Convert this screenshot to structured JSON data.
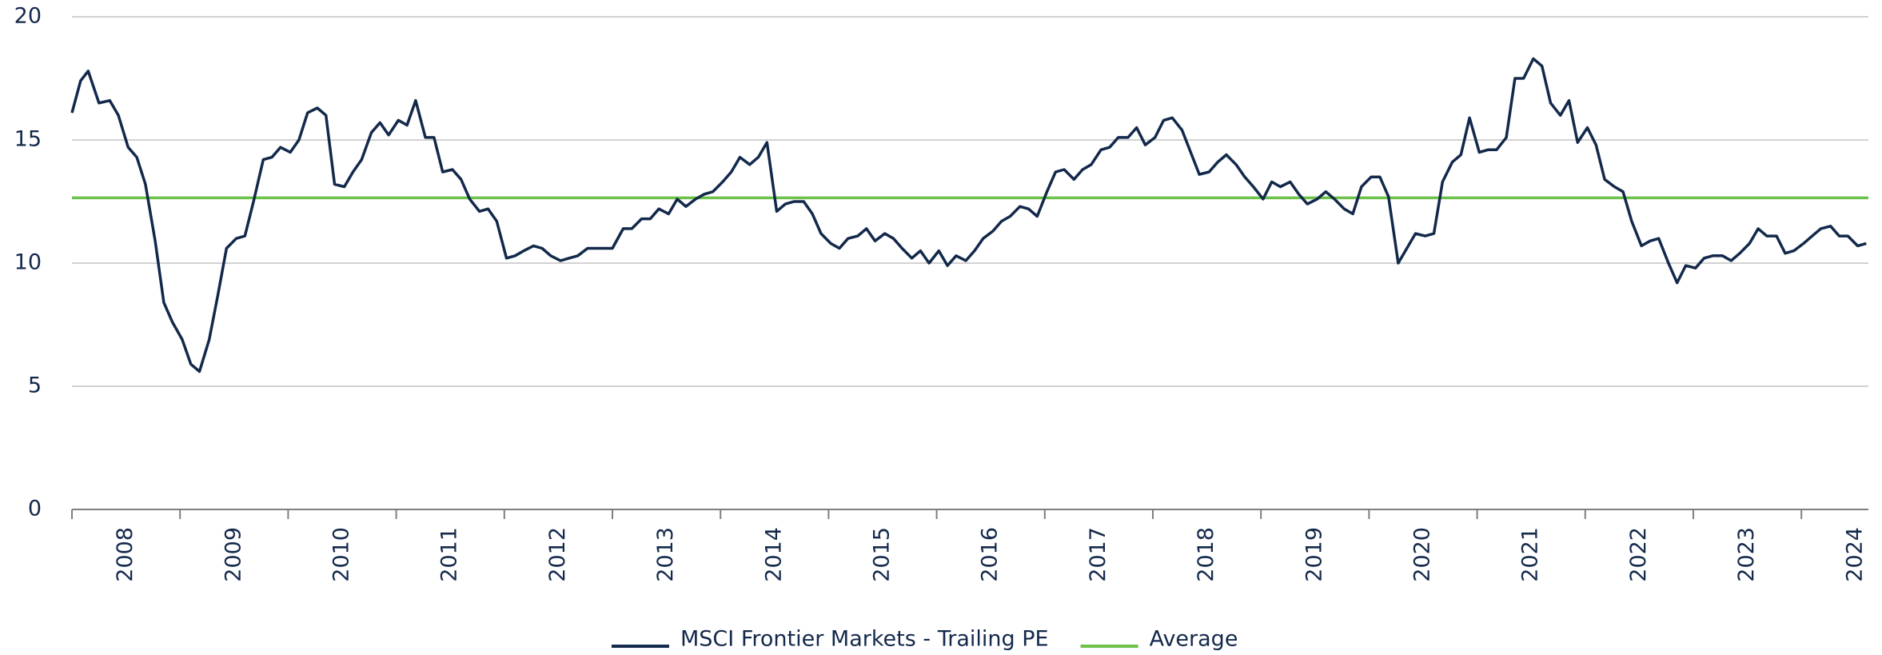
{
  "chart_data": {
    "type": "line",
    "xlim": [
      2008,
      2024.62
    ],
    "xticks": [
      2008,
      2009,
      2010,
      2011,
      2012,
      2013,
      2014,
      2015,
      2016,
      2017,
      2018,
      2019,
      2020,
      2021,
      2022,
      2023,
      2024
    ],
    "ylim": [
      0,
      20
    ],
    "yticks": [
      0,
      5,
      10,
      15,
      20
    ],
    "grid": true,
    "legend": "bottom",
    "series": [
      {
        "name": "MSCI Frontier Markets - Trailing PE",
        "color": "#13294b",
        "x": [
          2008.0,
          2008.08,
          2008.15,
          2008.25,
          2008.35,
          2008.43,
          2008.52,
          2008.6,
          2008.68,
          2008.77,
          2008.85,
          2008.93,
          2009.02,
          2009.1,
          2009.18,
          2009.27,
          2009.35,
          2009.43,
          2009.52,
          2009.6,
          2009.68,
          2009.77,
          2009.85,
          2009.93,
          2010.02,
          2010.1,
          2010.18,
          2010.27,
          2010.35,
          2010.43,
          2010.52,
          2010.6,
          2010.68,
          2010.77,
          2010.85,
          2010.93,
          2011.02,
          2011.1,
          2011.18,
          2011.27,
          2011.35,
          2011.43,
          2011.52,
          2011.6,
          2011.68,
          2011.77,
          2011.85,
          2011.93,
          2012.02,
          2012.1,
          2012.18,
          2012.27,
          2012.35,
          2012.43,
          2012.52,
          2012.6,
          2012.68,
          2012.77,
          2013.0,
          2013.1,
          2013.18,
          2013.27,
          2013.35,
          2013.43,
          2013.52,
          2013.6,
          2013.68,
          2013.77,
          2013.85,
          2013.93,
          2014.02,
          2014.1,
          2014.18,
          2014.27,
          2014.35,
          2014.43,
          2014.52,
          2014.6,
          2014.68,
          2014.77,
          2014.85,
          2014.93,
          2015.02,
          2015.1,
          2015.18,
          2015.27,
          2015.35,
          2015.43,
          2015.52,
          2015.6,
          2015.68,
          2015.77,
          2015.85,
          2015.93,
          2016.02,
          2016.1,
          2016.18,
          2016.27,
          2016.35,
          2016.43,
          2016.52,
          2016.6,
          2016.68,
          2016.77,
          2016.85,
          2016.93,
          2017.02,
          2017.1,
          2017.18,
          2017.27,
          2017.35,
          2017.43,
          2017.52,
          2017.6,
          2017.68,
          2017.77,
          2017.85,
          2017.93,
          2018.02,
          2018.1,
          2018.18,
          2018.27,
          2018.35,
          2018.43,
          2018.52,
          2018.6,
          2018.68,
          2018.77,
          2018.85,
          2018.93,
          2019.02,
          2019.1,
          2019.18,
          2019.27,
          2019.35,
          2019.43,
          2019.52,
          2019.6,
          2019.68,
          2019.77,
          2019.85,
          2019.93,
          2020.02,
          2020.1,
          2020.18,
          2020.27,
          2020.35,
          2020.43,
          2020.52,
          2020.6,
          2020.68,
          2020.77,
          2020.85,
          2020.93,
          2021.02,
          2021.1,
          2021.18,
          2021.27,
          2021.35,
          2021.43,
          2021.52,
          2021.6,
          2021.68,
          2021.77,
          2021.85,
          2021.93,
          2022.02,
          2022.1,
          2022.18,
          2022.27,
          2022.35,
          2022.43,
          2022.52,
          2022.6,
          2022.68,
          2022.77,
          2022.85,
          2022.93,
          2023.02,
          2023.1,
          2023.18,
          2023.27,
          2023.35,
          2023.43,
          2023.52,
          2023.6,
          2023.68,
          2023.77,
          2023.85,
          2023.93,
          2024.02,
          2024.1,
          2024.18,
          2024.27,
          2024.35,
          2024.43,
          2024.52,
          2024.6
        ],
        "values": [
          16.1,
          17.4,
          17.8,
          16.5,
          16.6,
          16.0,
          14.7,
          14.3,
          13.2,
          10.9,
          8.4,
          7.6,
          6.9,
          5.9,
          5.6,
          6.9,
          8.7,
          10.6,
          11.0,
          11.1,
          12.5,
          14.2,
          14.3,
          14.7,
          14.5,
          15.0,
          16.1,
          16.3,
          16.0,
          13.2,
          13.1,
          13.7,
          14.2,
          15.3,
          15.7,
          15.2,
          15.8,
          15.6,
          16.6,
          15.1,
          15.1,
          13.7,
          13.8,
          13.4,
          12.6,
          12.1,
          12.2,
          11.7,
          10.2,
          10.3,
          10.5,
          10.7,
          10.6,
          10.3,
          10.1,
          10.2,
          10.3,
          10.6,
          10.6,
          11.4,
          11.4,
          11.8,
          11.8,
          12.2,
          12.0,
          12.6,
          12.3,
          12.6,
          12.8,
          12.9,
          13.3,
          13.7,
          14.3,
          14.0,
          14.3,
          14.9,
          12.1,
          12.4,
          12.5,
          12.5,
          12.0,
          11.2,
          10.8,
          10.6,
          11.0,
          11.1,
          11.4,
          10.9,
          11.2,
          11.0,
          10.6,
          10.2,
          10.5,
          10.0,
          10.5,
          9.9,
          10.3,
          10.1,
          10.5,
          11.0,
          11.3,
          11.7,
          11.9,
          12.3,
          12.2,
          11.9,
          12.9,
          13.7,
          13.8,
          13.4,
          13.8,
          14.0,
          14.6,
          14.7,
          15.1,
          15.1,
          15.5,
          14.8,
          15.1,
          15.8,
          15.9,
          15.4,
          14.5,
          13.6,
          13.7,
          14.1,
          14.4,
          14.0,
          13.5,
          13.1,
          12.6,
          13.3,
          13.1,
          13.3,
          12.8,
          12.4,
          12.6,
          12.9,
          12.6,
          12.2,
          12.0,
          13.1,
          13.5,
          13.5,
          12.7,
          10.0,
          10.6,
          11.2,
          11.1,
          11.2,
          13.3,
          14.1,
          14.4,
          15.9,
          14.5,
          14.6,
          14.6,
          15.1,
          17.5,
          17.5,
          18.3,
          18.0,
          16.5,
          16.0,
          16.6,
          14.9,
          15.5,
          14.8,
          13.4,
          13.1,
          12.9,
          11.7,
          10.7,
          10.9,
          11.0,
          10.0,
          9.2,
          9.9,
          9.8,
          10.2,
          10.3,
          10.3,
          10.1,
          10.4,
          10.8,
          11.4,
          11.1,
          11.1,
          10.4,
          10.5,
          10.8,
          11.1,
          11.4,
          11.5,
          11.1,
          11.1,
          10.7,
          10.8
        ]
      },
      {
        "name": "Average",
        "color": "#6cc24a",
        "x": [
          2008.0,
          2024.62
        ],
        "values": [
          12.65,
          12.65
        ]
      }
    ]
  }
}
